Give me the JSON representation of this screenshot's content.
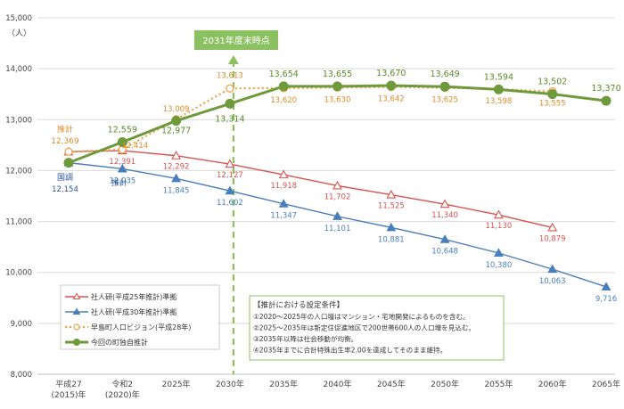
{
  "chart_data": {
    "type": "line",
    "title": "",
    "y_unit": "（人）",
    "ylim": [
      8000,
      15000
    ],
    "ytick_step": 1000,
    "yticks": [
      "8,000",
      "9,000",
      "10,000",
      "11,000",
      "12,000",
      "13,000",
      "14,000",
      "15,000"
    ],
    "categories": [
      [
        "平成27",
        "(2015)年"
      ],
      [
        "令和2",
        "(2020)年"
      ],
      [
        "2025年"
      ],
      [
        "2030年"
      ],
      [
        "2035年"
      ],
      [
        "2040年"
      ],
      [
        "2045年"
      ],
      [
        "2050年"
      ],
      [
        "2055年"
      ],
      [
        "2060年"
      ],
      [
        "2065年"
      ]
    ],
    "series": [
      {
        "name": "社人研(平成25年推計)準拠",
        "color": "#d9534f",
        "marker": "triangle-open",
        "values": [
          12369,
          12391,
          12292,
          12127,
          11918,
          11702,
          11525,
          11340,
          11130,
          10879,
          null
        ],
        "labels": [
          "",
          "12,391",
          "12,292",
          "12,127",
          "11,918",
          "11,702",
          "11,525",
          "11,340",
          "11,130",
          "10,879",
          ""
        ]
      },
      {
        "name": "社人研(平成30年推計)準拠",
        "color": "#4a7ebb",
        "marker": "triangle",
        "values": [
          12154,
          12035,
          11845,
          11602,
          11347,
          11101,
          10881,
          10648,
          10380,
          10063,
          9716
        ],
        "labels": [
          "",
          "12,035",
          "11,845",
          "11,602",
          "11,347",
          "11,101",
          "10,881",
          "10,648",
          "10,380",
          "10,063",
          "9,716"
        ]
      },
      {
        "name": "早島町人口ビジョン(平成28年)",
        "color": "#f0a04b",
        "marker": "circle-open",
        "dashed": true,
        "values": [
          12369,
          12414,
          13009,
          13613,
          13620,
          13630,
          13642,
          13625,
          13598,
          13555,
          null
        ],
        "labels": [
          "",
          "12,414",
          "13,009",
          "13,613",
          "13,620",
          "13,630",
          "13,642",
          "13,625",
          "13,598",
          "13,555",
          ""
        ]
      },
      {
        "name": "今回の町独自推計",
        "color": "#6f9a3b",
        "marker": "circle",
        "values": [
          12154,
          12559,
          12977,
          13314,
          13654,
          13655,
          13670,
          13649,
          13594,
          13502,
          13370
        ],
        "labels": [
          "",
          "12,559",
          "12,977",
          "13,314",
          "13,654",
          "13,655",
          "13,670",
          "13,649",
          "13,594",
          "13,502",
          "13,370"
        ]
      }
    ],
    "point_annotations": [
      {
        "label": "推計",
        "value": "12,369"
      },
      {
        "label": "国調",
        "value": "12,154"
      },
      {
        "label": "推計",
        "value": "12,035"
      }
    ],
    "vertical_marker": {
      "category_index": 3,
      "label": "2031年度末時点"
    },
    "legend_position": "bottom-left",
    "conditions_box": {
      "title": "【推計における設定条件】",
      "lines": [
        "①2020～2025年の人口増はマンション・宅地開発によるものを含む。",
        "②2025～2035年は新定住促進地区で200世帯600人の人口増を見込む。",
        "③2035年以降は社会移動が均衡。",
        "④2035年までに合計特殊出生率2.00を達成してそのまま維持。"
      ]
    }
  }
}
